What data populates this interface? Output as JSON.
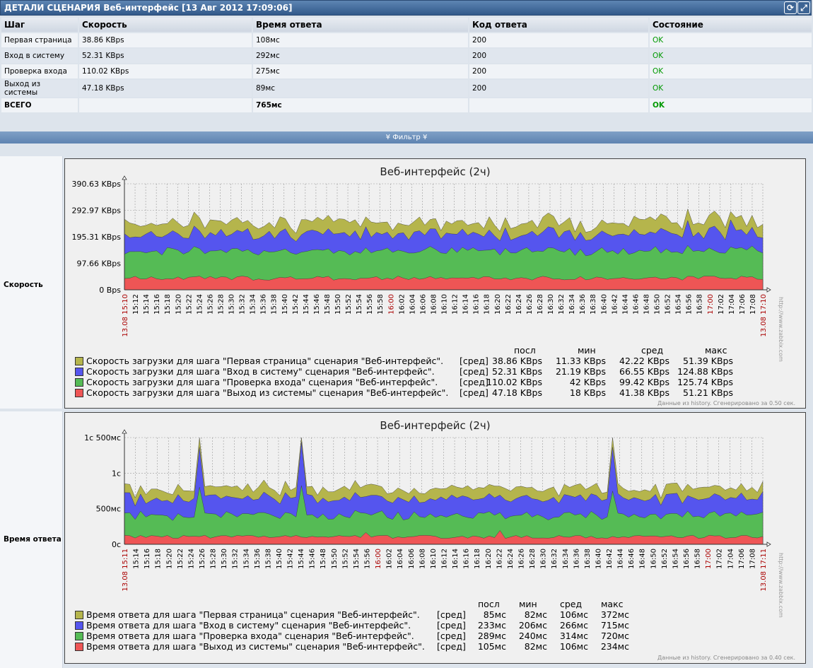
{
  "header": {
    "title": "ДЕТАЛИ СЦЕНАРИЯ Веб-интерфейс [13 Авг 2012 17:09:06]",
    "icons": [
      "refresh-icon",
      "fullscreen-icon"
    ]
  },
  "table": {
    "columns": [
      "Шаг",
      "Скорость",
      "Время ответа",
      "Код ответа",
      "Состояние"
    ],
    "rows": [
      [
        "Первая страница",
        "38.86 KBps",
        "108мс",
        "200",
        "OK"
      ],
      [
        "Вход в систему",
        "52.31 KBps",
        "292мс",
        "200",
        "OK"
      ],
      [
        "Проверка входа",
        "110.02 KBps",
        "275мс",
        "200",
        "OK"
      ],
      [
        "Выход из системы",
        "47.18 KBps",
        "89мс",
        "200",
        "OK"
      ]
    ],
    "total": [
      "ВСЕГО",
      "",
      "765мс",
      "",
      "OK"
    ]
  },
  "filter": {
    "label": "Фильтр"
  },
  "graphs": [
    {
      "label": "Скорость",
      "title": "Веб-интерфейс (2ч)",
      "yticks": [
        "390.63 KBps",
        "292.97 KBps",
        "195.31 KBps",
        "97.66 KBps",
        "0 Bps"
      ],
      "xstart": "13.08 15:10",
      "xend": "13.08 17:10",
      "xticks": [
        "15:12",
        "15:14",
        "15:16",
        "15:18",
        "15:20",
        "15:22",
        "15:24",
        "15:26",
        "15:28",
        "15:30",
        "15:32",
        "15:34",
        "15:36",
        "15:38",
        "15:40",
        "15:42",
        "15:44",
        "15:46",
        "15:48",
        "15:50",
        "15:52",
        "15:54",
        "15:56",
        "15:58",
        "16:00",
        "16:02",
        "16:04",
        "16:06",
        "16:08",
        "16:10",
        "16:12",
        "16:14",
        "16:16",
        "16:18",
        "16:20",
        "16:22",
        "16:24",
        "16:26",
        "16:28",
        "16:30",
        "16:32",
        "16:34",
        "16:36",
        "16:38",
        "16:40",
        "16:42",
        "16:44",
        "16:46",
        "16:48",
        "16:50",
        "16:52",
        "16:54",
        "16:56",
        "16:58",
        "17:00",
        "17:02",
        "17:04",
        "17:06",
        "17:08"
      ],
      "legend_header": [
        "посл",
        "мин",
        "сред",
        "макс"
      ],
      "legend": [
        {
          "color": "#b5b54c",
          "name": "Скорость загрузки для шага \"Первая страница\" сценария \"Веб-интерфейс\".",
          "fn": "[сред]",
          "vals": [
            "38.86 KBps",
            "11.33 KBps",
            "42.22 KBps",
            "51.39 KBps"
          ]
        },
        {
          "color": "#5555ee",
          "name": "Скорость загрузки для шага \"Вход в систему\" сценария \"Веб-интерфейс\".",
          "fn": "[сред]",
          "vals": [
            "52.31 KBps",
            "21.19 KBps",
            "66.55 KBps",
            "124.88 KBps"
          ]
        },
        {
          "color": "#55bb55",
          "name": "Скорость загрузки для шага \"Проверка входа\" сценария \"Веб-интерфейс\".",
          "fn": "[сред]",
          "vals": [
            "110.02 KBps",
            "42 KBps",
            "99.42 KBps",
            "125.74 KBps"
          ]
        },
        {
          "color": "#ee5555",
          "name": "Скорость загрузки для шага \"Выход из системы\" сценария \"Веб-интерфейс\".",
          "fn": "[сред]",
          "vals": [
            "47.18 KBps",
            "18 KBps",
            "41.38 KBps",
            "51.21 KBps"
          ]
        }
      ],
      "footer": "Данные из history. Сгенерировано за 0.50 сек.",
      "watermark": "http://www.zabbix.com"
    },
    {
      "label": "Время ответа",
      "title": "Веб-интерфейс (2ч)",
      "yticks": [
        "1с 500мс",
        "1с",
        "500мс",
        "0с"
      ],
      "xstart": "13.08 15:11",
      "xend": "13.08 17:11",
      "xticks": [
        "15:14",
        "15:16",
        "15:18",
        "15:20",
        "15:22",
        "15:24",
        "15:26",
        "15:28",
        "15:30",
        "15:32",
        "15:34",
        "15:36",
        "15:38",
        "15:40",
        "15:42",
        "15:44",
        "15:46",
        "15:48",
        "15:50",
        "15:52",
        "15:54",
        "15:56",
        "16:00",
        "16:02",
        "16:04",
        "16:06",
        "16:08",
        "16:10",
        "16:12",
        "16:14",
        "16:16",
        "16:18",
        "16:20",
        "16:22",
        "16:24",
        "16:26",
        "16:28",
        "16:30",
        "16:32",
        "16:34",
        "16:36",
        "16:38",
        "16:40",
        "16:42",
        "16:44",
        "16:46",
        "16:48",
        "16:50",
        "16:52",
        "16:54",
        "16:56",
        "16:58",
        "17:00",
        "17:02",
        "17:04",
        "17:06",
        "17:08"
      ],
      "legend_header": [
        "посл",
        "мин",
        "сред",
        "макс"
      ],
      "legend": [
        {
          "color": "#b5b54c",
          "name": "Время ответа для шага \"Первая страница\" сценария \"Веб-интерфейс\".",
          "fn": "[сред]",
          "vals": [
            "85мс",
            "82мс",
            "106мс",
            "372мс"
          ]
        },
        {
          "color": "#5555ee",
          "name": "Время ответа для шага \"Вход в систему\" сценария \"Веб-интерфейс\".",
          "fn": "[сред]",
          "vals": [
            "233мс",
            "206мс",
            "266мс",
            "715мс"
          ]
        },
        {
          "color": "#55bb55",
          "name": "Время ответа для шага \"Проверка входа\" сценария \"Веб-интерфейс\".",
          "fn": "[сред]",
          "vals": [
            "289мс",
            "240мс",
            "314мс",
            "720мс"
          ]
        },
        {
          "color": "#ee5555",
          "name": "Время ответа для шага \"Выход из системы\" сценария \"Веб-интерфейс\".",
          "fn": "[сред]",
          "vals": [
            "105мс",
            "82мс",
            "106мс",
            "234мс"
          ]
        }
      ],
      "footer": "Данные из history. Сгенерировано за 0.40 сек.",
      "watermark": "http://www.zabbix.com"
    }
  ]
}
